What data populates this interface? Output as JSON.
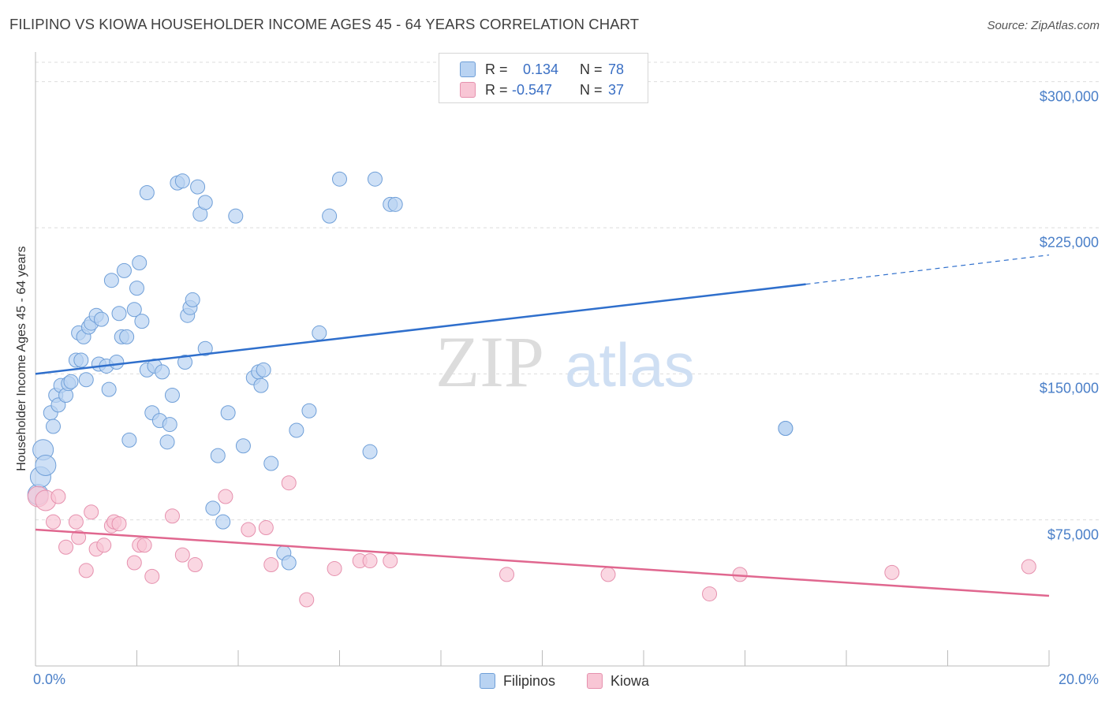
{
  "header": {
    "title": "FILIPINO VS KIOWA HOUSEHOLDER INCOME AGES 45 - 64 YEARS CORRELATION CHART",
    "source": "Source: ZipAtlas.com"
  },
  "watermark": {
    "part1": "ZIP",
    "part2": "atlas"
  },
  "colors": {
    "filipinos_fill": "#b9d3f2",
    "filipinos_stroke": "#6f9fd8",
    "filipinos_line": "#2f6fcc",
    "kiowa_fill": "#f8c6d5",
    "kiowa_stroke": "#e691ae",
    "kiowa_line": "#e0678f",
    "tick_text": "#4a7fc8"
  },
  "stats_box": {
    "rows": [
      {
        "r_label": "R =",
        "r_value": "0.134",
        "n_label": "N =",
        "n_value": "78"
      },
      {
        "r_label": "R =",
        "r_value": "-0.547",
        "n_label": "N =",
        "n_value": "37"
      }
    ]
  },
  "legend": {
    "items": [
      "Filipinos",
      "Kiowa"
    ]
  },
  "chart_data": {
    "type": "scatter",
    "title": "FILIPINO VS KIOWA HOUSEHOLDER INCOME AGES 45 - 64 YEARS CORRELATION CHART",
    "xlabel": "",
    "ylabel": "Householder Income Ages 45 - 64 years",
    "xlim": [
      0,
      20
    ],
    "ylim": [
      0,
      312000
    ],
    "x_tick_labels": [
      "0.0%",
      "20.0%"
    ],
    "y_ticks": [
      75000,
      150000,
      225000,
      300000
    ],
    "y_tick_labels": [
      "$75,000",
      "$150,000",
      "$225,000",
      "$300,000"
    ],
    "grid": "horizontal dashed",
    "legend_position": "bottom-center",
    "series": [
      {
        "name": "Filipinos",
        "trend": {
          "x0": 0,
          "y0": 150000,
          "x1": 15.2,
          "y1": 196000,
          "dashed_to_x": 20,
          "dashed_to_y": 211000
        },
        "points": [
          [
            0.05,
            88000
          ],
          [
            0.1,
            97000
          ],
          [
            0.15,
            111000
          ],
          [
            0.2,
            103000
          ],
          [
            0.3,
            130000
          ],
          [
            0.35,
            123000
          ],
          [
            0.4,
            139000
          ],
          [
            0.45,
            134000
          ],
          [
            0.5,
            144000
          ],
          [
            0.6,
            139000
          ],
          [
            0.65,
            145000
          ],
          [
            0.7,
            146000
          ],
          [
            0.8,
            157000
          ],
          [
            0.85,
            171000
          ],
          [
            0.9,
            157000
          ],
          [
            0.95,
            169000
          ],
          [
            1.0,
            147000
          ],
          [
            1.05,
            174000
          ],
          [
            1.1,
            176000
          ],
          [
            1.2,
            180000
          ],
          [
            1.25,
            155000
          ],
          [
            1.3,
            178000
          ],
          [
            1.4,
            154000
          ],
          [
            1.45,
            142000
          ],
          [
            1.5,
            198000
          ],
          [
            1.6,
            156000
          ],
          [
            1.65,
            181000
          ],
          [
            1.7,
            169000
          ],
          [
            1.75,
            203000
          ],
          [
            1.8,
            169000
          ],
          [
            1.85,
            116000
          ],
          [
            1.95,
            183000
          ],
          [
            2.0,
            194000
          ],
          [
            2.05,
            207000
          ],
          [
            2.1,
            177000
          ],
          [
            2.2,
            152000
          ],
          [
            2.2,
            243000
          ],
          [
            2.3,
            130000
          ],
          [
            2.35,
            154000
          ],
          [
            2.45,
            126000
          ],
          [
            2.5,
            151000
          ],
          [
            2.6,
            115000
          ],
          [
            2.65,
            124000
          ],
          [
            2.7,
            139000
          ],
          [
            2.8,
            248000
          ],
          [
            2.9,
            249000
          ],
          [
            2.95,
            156000
          ],
          [
            3.0,
            180000
          ],
          [
            3.05,
            184000
          ],
          [
            3.1,
            188000
          ],
          [
            3.2,
            246000
          ],
          [
            3.25,
            232000
          ],
          [
            3.35,
            238000
          ],
          [
            3.35,
            163000
          ],
          [
            3.5,
            81000
          ],
          [
            3.6,
            108000
          ],
          [
            3.7,
            74000
          ],
          [
            3.8,
            130000
          ],
          [
            3.95,
            231000
          ],
          [
            4.1,
            113000
          ],
          [
            4.3,
            148000
          ],
          [
            4.4,
            151000
          ],
          [
            4.45,
            144000
          ],
          [
            4.5,
            152000
          ],
          [
            4.65,
            104000
          ],
          [
            4.9,
            58000
          ],
          [
            5.0,
            53000
          ],
          [
            5.15,
            121000
          ],
          [
            5.4,
            131000
          ],
          [
            5.6,
            171000
          ],
          [
            5.8,
            231000
          ],
          [
            6.0,
            250000
          ],
          [
            6.6,
            110000
          ],
          [
            6.7,
            250000
          ],
          [
            7.0,
            237000
          ],
          [
            7.1,
            237000
          ],
          [
            14.8,
            122000
          ],
          [
            14.8,
            122000
          ]
        ]
      },
      {
        "name": "Kiowa",
        "trend": {
          "x0": 0,
          "y0": 70000,
          "x1": 20,
          "y1": 36000
        },
        "points": [
          [
            0.05,
            87000
          ],
          [
            0.2,
            85000
          ],
          [
            0.35,
            74000
          ],
          [
            0.45,
            87000
          ],
          [
            0.6,
            61000
          ],
          [
            0.8,
            74000
          ],
          [
            0.85,
            66000
          ],
          [
            1.0,
            49000
          ],
          [
            1.1,
            79000
          ],
          [
            1.2,
            60000
          ],
          [
            1.35,
            62000
          ],
          [
            1.5,
            72000
          ],
          [
            1.55,
            74000
          ],
          [
            1.65,
            73000
          ],
          [
            1.95,
            53000
          ],
          [
            2.05,
            62000
          ],
          [
            2.15,
            62000
          ],
          [
            2.3,
            46000
          ],
          [
            2.7,
            77000
          ],
          [
            2.9,
            57000
          ],
          [
            3.15,
            52000
          ],
          [
            3.75,
            87000
          ],
          [
            4.2,
            70000
          ],
          [
            4.55,
            71000
          ],
          [
            4.65,
            52000
          ],
          [
            5.0,
            94000
          ],
          [
            5.35,
            34000
          ],
          [
            5.9,
            50000
          ],
          [
            6.4,
            54000
          ],
          [
            6.6,
            54000
          ],
          [
            7.0,
            54000
          ],
          [
            9.3,
            47000
          ],
          [
            11.3,
            47000
          ],
          [
            13.3,
            37000
          ],
          [
            13.9,
            47000
          ],
          [
            16.9,
            48000
          ],
          [
            19.6,
            51000
          ]
        ]
      }
    ]
  }
}
